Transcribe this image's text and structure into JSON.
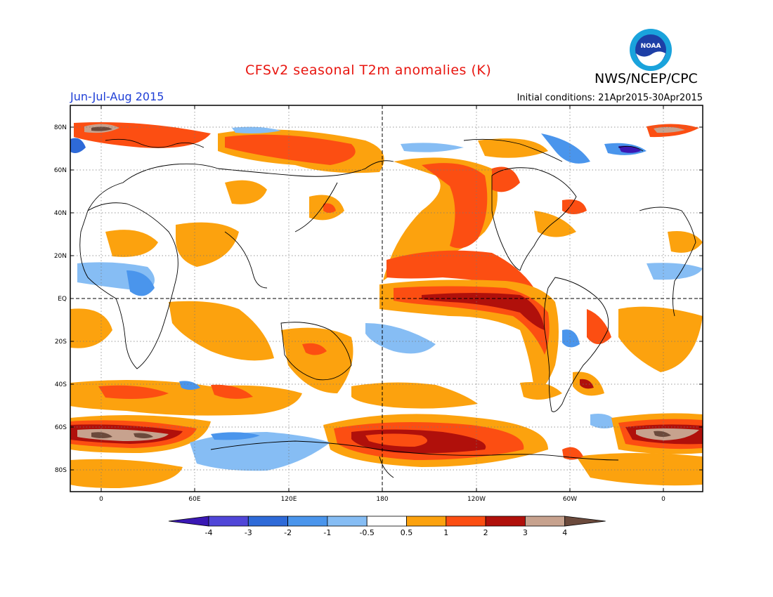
{
  "header": {
    "title": "CFSv2 seasonal T2m anomalies (K)",
    "agency": "NWS/NCEP/CPC",
    "period": "Jun-Jul-Aug 2015",
    "initial_conditions": "Initial conditions: 21Apr2015-30Apr2015",
    "logo_text": "NOAA"
  },
  "map": {
    "lat_labels": [
      "80N",
      "60N",
      "40N",
      "20N",
      "EQ",
      "20S",
      "40S",
      "60S",
      "80S"
    ],
    "lon_labels": [
      "0",
      "60E",
      "120E",
      "180",
      "120W",
      "60W",
      "0"
    ]
  },
  "colorbar": {
    "labels": [
      "-4",
      "-3",
      "-2",
      "-1",
      "-0.5",
      "0.5",
      "1",
      "2",
      "3",
      "4"
    ],
    "colors": [
      "#3a18b4",
      "#5046d8",
      "#2e6ad8",
      "#4a95ec",
      "#86bdf4",
      "#ffffff",
      "#fca20e",
      "#fc4e12",
      "#b0100b",
      "#c7a28e",
      "#6b4a3c"
    ]
  },
  "colors": {
    "warm_light": "#fca20e",
    "warm_medium": "#fc4e12",
    "warm_strong": "#b0100b",
    "warm_extreme": "#c7a28e",
    "warm_max": "#6b4a3c",
    "cool_light": "#86bdf4",
    "cool_medium": "#4a95ec",
    "cool_strong": "#2e6ad8",
    "cool_extreme": "#5046d8",
    "title_red": "#e8150f",
    "period_blue": "#1f3fd6"
  }
}
